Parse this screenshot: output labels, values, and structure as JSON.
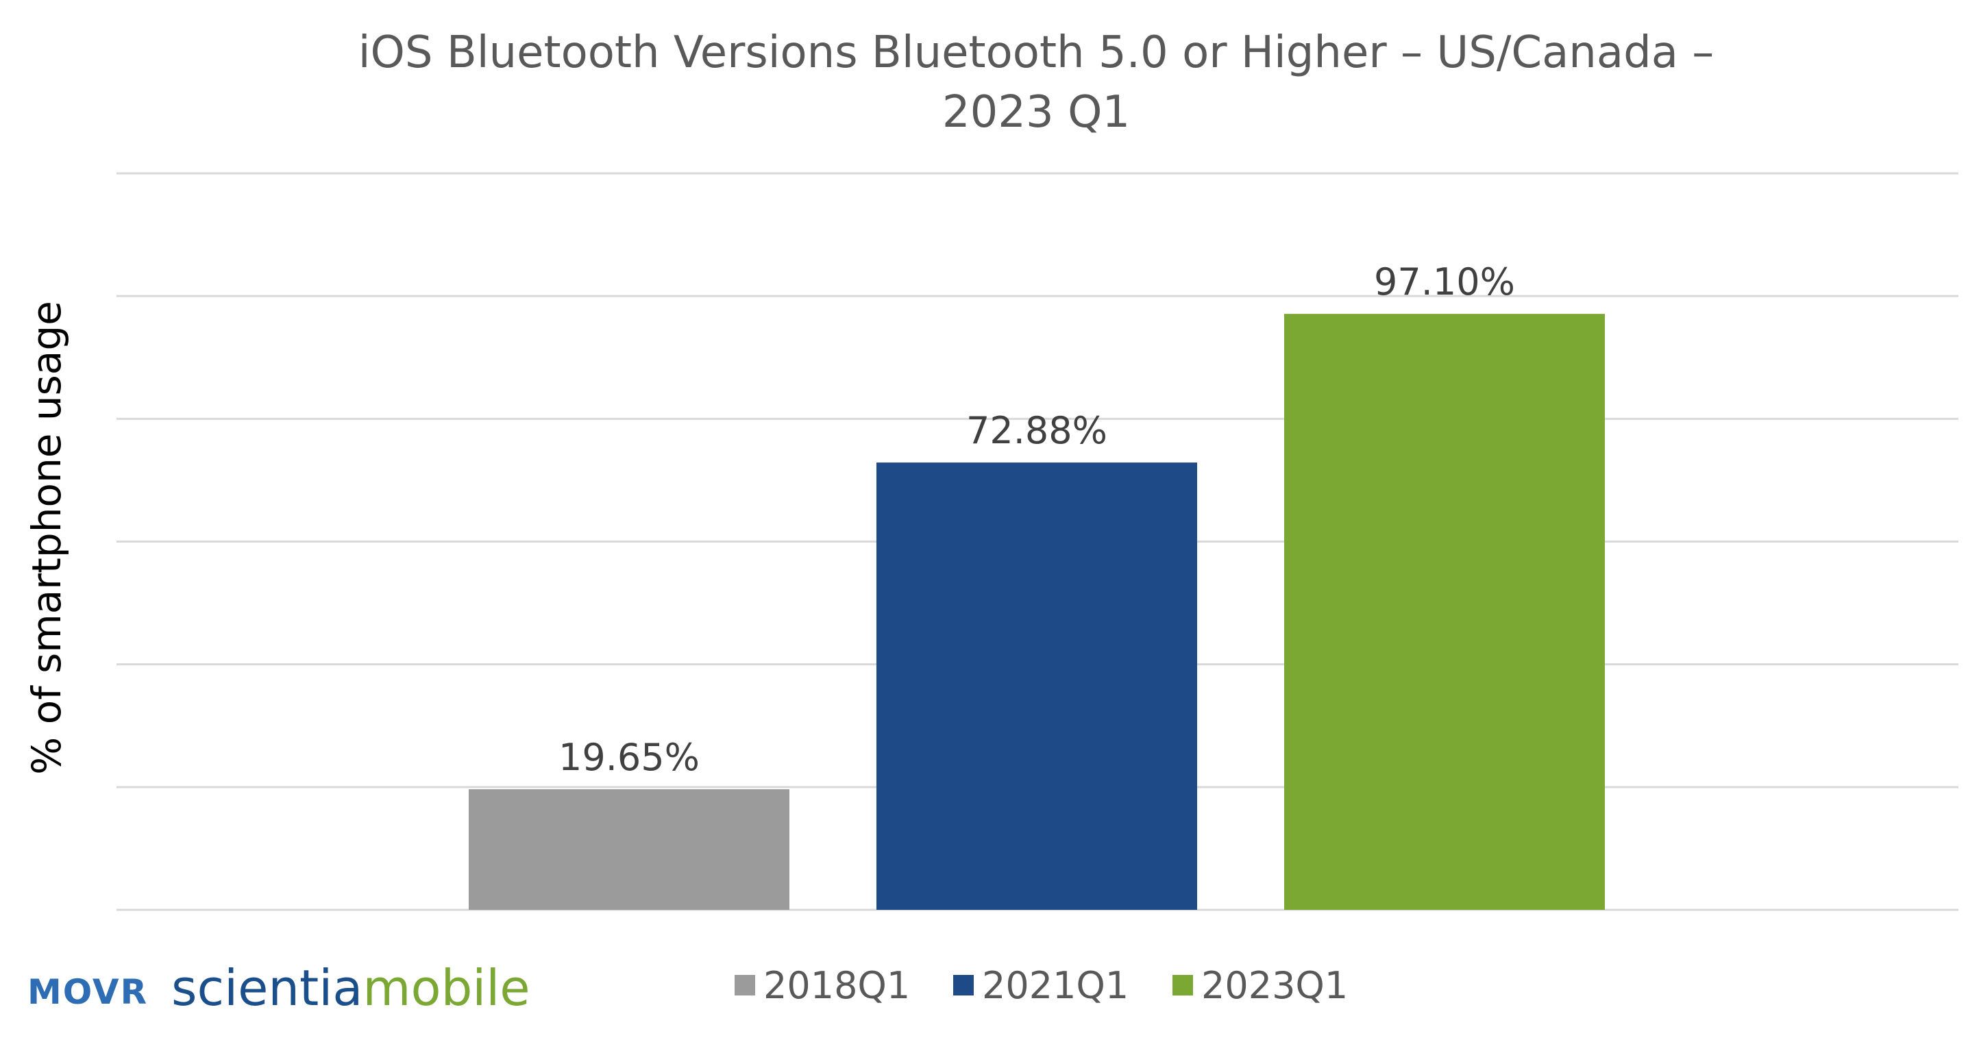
{
  "chart_data": {
    "type": "bar",
    "title_lines": [
      "iOS Bluetooth Versions Bluetooth 5.0 or Higher – US/Canada –",
      "2023 Q1"
    ],
    "ylabel": "% of smartphone usage",
    "xlabel": "",
    "ylim": [
      0,
      120
    ],
    "grid": true,
    "legend_position": "bottom",
    "series": [
      {
        "name": "2018Q1",
        "value": 19.65,
        "label": "19.65%",
        "color": "#9b9b9b"
      },
      {
        "name": "2021Q1",
        "value": 72.88,
        "label": "72.88%",
        "color": "#1e4a87"
      },
      {
        "name": "2023Q1",
        "value": 97.1,
        "label": "97.10%",
        "color": "#7ba832"
      }
    ]
  },
  "logo": {
    "movr": "MOVR",
    "scientia": "scientia",
    "mobile": "mobile"
  }
}
